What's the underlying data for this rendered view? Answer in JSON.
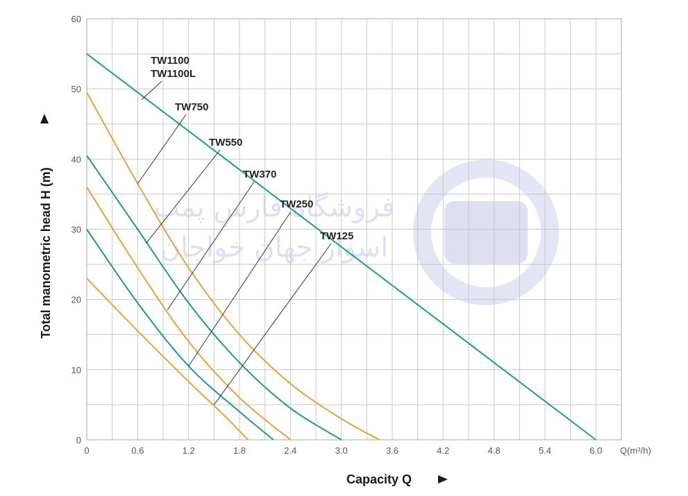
{
  "chart_data": {
    "type": "line",
    "xlabel": "Capacity  Q",
    "ylabel": "Total manometric head H (m)",
    "x_unit": "Q(m³/h)",
    "xlim": [
      0,
      6.3
    ],
    "ylim": [
      0,
      60
    ],
    "x_ticks": [
      "0",
      "0.6",
      "1.2",
      "1.8",
      "2.4",
      "3.0",
      "3.6",
      "4.2",
      "4.8",
      "5.4",
      "6.0"
    ],
    "y_ticks": [
      "0",
      "10",
      "20",
      "30",
      "40",
      "50",
      "60"
    ],
    "grid": true,
    "colors": {
      "teal": "#1f9a8a",
      "orange": "#e4a23a",
      "grid": "#c8c8c8",
      "leader": "#333333"
    },
    "series": [
      {
        "name": "TW1100 TW1100L",
        "label_lines": [
          "TW1100",
          "TW1100L"
        ],
        "color": "teal",
        "x": [
          0,
          6.0
        ],
        "y": [
          55,
          0
        ]
      },
      {
        "name": "TW750",
        "label_lines": [
          "TW750"
        ],
        "color": "orange",
        "x": [
          0,
          0.6,
          1.2,
          1.8,
          2.4,
          3.0,
          3.45
        ],
        "y": [
          49.5,
          36.5,
          24.5,
          15,
          8,
          3,
          0
        ]
      },
      {
        "name": "TW550",
        "label_lines": [
          "TW550"
        ],
        "color": "teal",
        "x": [
          0,
          0.6,
          1.2,
          1.8,
          2.4,
          3.0
        ],
        "y": [
          40.5,
          30,
          19.5,
          11,
          4.5,
          0
        ]
      },
      {
        "name": "TW370",
        "label_lines": [
          "TW370"
        ],
        "color": "orange",
        "x": [
          0,
          0.6,
          1.2,
          1.8,
          2.4
        ],
        "y": [
          36,
          24.5,
          14,
          6,
          0
        ]
      },
      {
        "name": "TW250",
        "label_lines": [
          "TW250"
        ],
        "color": "teal",
        "x": [
          0,
          0.6,
          1.2,
          1.8,
          2.2
        ],
        "y": [
          30,
          19.5,
          10.5,
          4,
          0
        ]
      },
      {
        "name": "TW125",
        "label_lines": [
          "TW125"
        ],
        "color": "orange",
        "x": [
          0,
          0.6,
          1.2,
          1.6,
          1.9
        ],
        "y": [
          23,
          15.5,
          8.3,
          3.7,
          0
        ]
      }
    ],
    "annotations": [
      {
        "series": "TW1100 TW1100L",
        "text_lines": [
          "TW1100",
          "TW1100L"
        ],
        "point": [
          0.65,
          48.5
        ]
      },
      {
        "series": "TW750",
        "text_lines": [
          "TW750"
        ],
        "point": [
          0.6,
          36.5
        ]
      },
      {
        "series": "TW550",
        "text_lines": [
          "TW550"
        ],
        "point": [
          0.7,
          28
        ]
      },
      {
        "series": "TW370",
        "text_lines": [
          "TW370"
        ],
        "point": [
          0.95,
          18.5
        ]
      },
      {
        "series": "TW250",
        "text_lines": [
          "TW250"
        ],
        "point": [
          1.2,
          10.5
        ]
      },
      {
        "series": "TW125",
        "text_lines": [
          "TW125"
        ],
        "point": [
          1.5,
          5
        ]
      }
    ]
  },
  "watermark": {
    "text_line1": "فروشگاه فارس پمپ",
    "text_line2": "اسوار جهان خواجان"
  }
}
